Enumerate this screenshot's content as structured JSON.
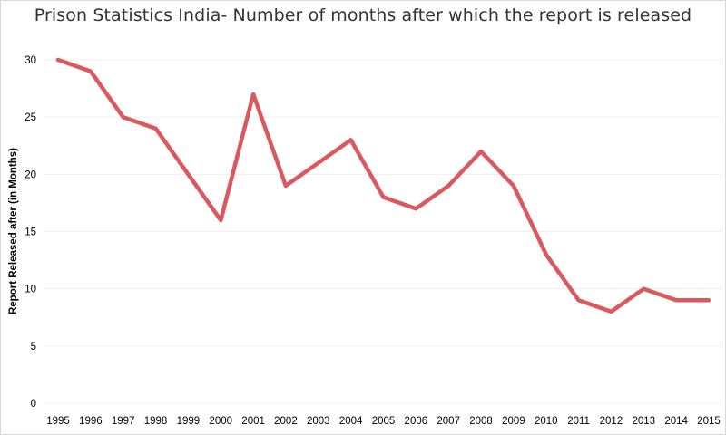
{
  "chart_data": {
    "type": "line",
    "title": "Prison Statistics India- Number of months after which the report is released",
    "xlabel": "",
    "ylabel": "Report Released after (in Months)",
    "categories": [
      "1995",
      "1996",
      "1997",
      "1998",
      "1999",
      "2000",
      "2001",
      "2002",
      "2003",
      "2004",
      "2005",
      "2006",
      "2007",
      "2008",
      "2009",
      "2010",
      "2011",
      "2012",
      "2013",
      "2014",
      "2015"
    ],
    "series": [
      {
        "name": "Report Released after (in Months)",
        "values": [
          30,
          29,
          25,
          24,
          20,
          16,
          27,
          19,
          21,
          23,
          18,
          17,
          19,
          22,
          19,
          13,
          9,
          8,
          10,
          9,
          9
        ]
      }
    ],
    "ylim": [
      0,
      30
    ],
    "yticks": [
      0,
      5,
      10,
      15,
      20,
      25,
      30
    ],
    "grid": true,
    "line_color": "#d9595f",
    "grid_color": "#efefef"
  }
}
